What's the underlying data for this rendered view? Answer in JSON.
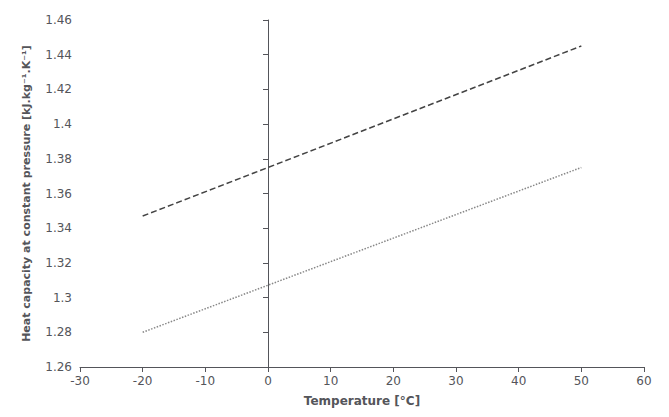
{
  "chart_data": {
    "type": "line",
    "x": [
      -20,
      50
    ],
    "series": [
      {
        "color": "#888888",
        "line_style": "dotted",
        "values": [
          1.28,
          1.375
        ]
      },
      {
        "color": "#444444",
        "line_style": "dashed",
        "values": [
          1.347,
          1.445
        ]
      }
    ],
    "xlabel": "Temperature [°C]",
    "ylabel": "Heat capacity at constant pressure [kJ.kg⁻¹.K⁻¹]",
    "xlim": [
      -30,
      60
    ],
    "ylim": [
      1.26,
      1.46
    ],
    "xticks": [
      -30,
      -20,
      -10,
      0,
      10,
      20,
      30,
      40,
      50,
      60
    ],
    "yticks": [
      1.26,
      1.28,
      1.3,
      1.32,
      1.34,
      1.36,
      1.38,
      1.4,
      1.42,
      1.44,
      1.46
    ],
    "grid": false
  }
}
